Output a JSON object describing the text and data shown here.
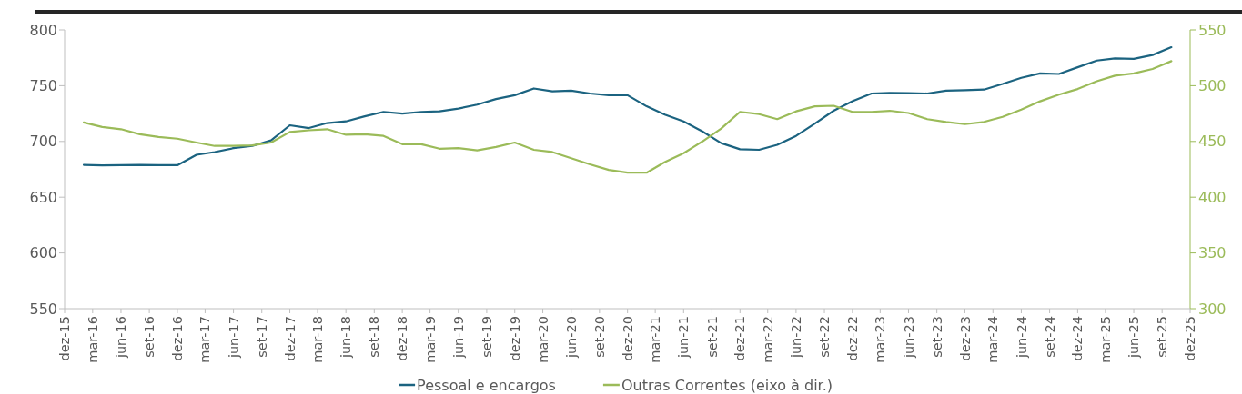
{
  "chart_data": {
    "type": "line",
    "x": [
      "2016-02",
      "2016-04",
      "2016-06",
      "2016-08",
      "2016-10",
      "2016-12",
      "2017-02",
      "2017-04",
      "2017-06",
      "2017-08",
      "2017-10",
      "2017-12",
      "2018-02",
      "2018-04",
      "2018-06",
      "2018-08",
      "2018-10",
      "2018-12",
      "2019-02",
      "2019-04",
      "2019-06",
      "2019-08",
      "2019-10",
      "2019-12",
      "2020-02",
      "2020-04",
      "2020-06",
      "2020-08",
      "2020-10",
      "2020-12",
      "2021-02",
      "2021-04",
      "2021-06",
      "2021-08",
      "2021-10",
      "2021-12",
      "2022-02",
      "2022-04",
      "2022-06",
      "2022-08",
      "2022-10",
      "2022-12",
      "2023-02",
      "2023-04",
      "2023-06",
      "2023-08",
      "2023-10",
      "2023-12",
      "2024-02",
      "2024-04",
      "2024-06",
      "2024-08",
      "2024-10",
      "2024-12",
      "2025-02",
      "2025-04",
      "2025-06",
      "2025-08",
      "2025-10"
    ],
    "series": [
      {
        "name": "Pessoal e encargos",
        "color": "#1b6380",
        "values": [
          679,
          678.5,
          678.8,
          679,
          678.7,
          678.7,
          688,
          690.5,
          694,
          696,
          701,
          714.5,
          712,
          716.5,
          718,
          722.5,
          726.5,
          725,
          726.5,
          727,
          729.5,
          733,
          738,
          741.5,
          747.5,
          745,
          745.5,
          743,
          741.5,
          741.5,
          731.5,
          724,
          718,
          709,
          698.5,
          693,
          692.5,
          697,
          705,
          716,
          727.5,
          736,
          743,
          743.5,
          743.3,
          743,
          745.5,
          746,
          746.5,
          751.5,
          757,
          761,
          760.5,
          766.5,
          772.5,
          774.5,
          774,
          777.5,
          784.5
        ]
      },
      {
        "name": "Outras Correntes (eixo à dir.)",
        "color": "#9bbb59",
        "axis": "y2",
        "values": [
          467,
          463,
          461,
          456.5,
          454,
          452.5,
          449,
          446,
          446,
          446.5,
          449,
          458.5,
          460,
          461,
          456,
          456.5,
          455,
          447.5,
          447.5,
          443.5,
          444,
          442,
          445,
          449,
          442.5,
          440.5,
          435,
          429.5,
          424.5,
          422,
          422,
          431.5,
          439.5,
          450,
          461.5,
          476.5,
          474.5,
          470,
          477,
          481.5,
          482,
          476.5,
          476.5,
          477.5,
          475.5,
          470,
          467.5,
          465.5,
          467.5,
          472,
          478.5,
          486,
          492,
          497,
          504,
          509,
          511,
          515,
          522
        ]
      }
    ],
    "xlim": [
      "2015-12",
      "2025-12"
    ],
    "xticks": [
      {
        "value": "2015-12",
        "label": "dez-15"
      },
      {
        "value": "2016-03",
        "label": "mar-16"
      },
      {
        "value": "2016-06",
        "label": "jun-16"
      },
      {
        "value": "2016-09",
        "label": "set-16"
      },
      {
        "value": "2016-12",
        "label": "dez-16"
      },
      {
        "value": "2017-03",
        "label": "mar-17"
      },
      {
        "value": "2017-06",
        "label": "jun-17"
      },
      {
        "value": "2017-09",
        "label": "set-17"
      },
      {
        "value": "2017-12",
        "label": "dez-17"
      },
      {
        "value": "2018-03",
        "label": "mar-18"
      },
      {
        "value": "2018-06",
        "label": "jun-18"
      },
      {
        "value": "2018-09",
        "label": "set-18"
      },
      {
        "value": "2018-12",
        "label": "dez-18"
      },
      {
        "value": "2019-03",
        "label": "mar-19"
      },
      {
        "value": "2019-06",
        "label": "jun-19"
      },
      {
        "value": "2019-09",
        "label": "set-19"
      },
      {
        "value": "2019-12",
        "label": "dez-19"
      },
      {
        "value": "2020-03",
        "label": "mar-20"
      },
      {
        "value": "2020-06",
        "label": "jun-20"
      },
      {
        "value": "2020-09",
        "label": "set-20"
      },
      {
        "value": "2020-12",
        "label": "dez-20"
      },
      {
        "value": "2021-03",
        "label": "mar-21"
      },
      {
        "value": "2021-06",
        "label": "jun-21"
      },
      {
        "value": "2021-09",
        "label": "set-21"
      },
      {
        "value": "2021-12",
        "label": "dez-21"
      },
      {
        "value": "2022-03",
        "label": "mar-22"
      },
      {
        "value": "2022-06",
        "label": "jun-22"
      },
      {
        "value": "2022-09",
        "label": "set-22"
      },
      {
        "value": "2022-12",
        "label": "dez-22"
      },
      {
        "value": "2023-03",
        "label": "mar-23"
      },
      {
        "value": "2023-06",
        "label": "jun-23"
      },
      {
        "value": "2023-09",
        "label": "set-23"
      },
      {
        "value": "2023-12",
        "label": "dez-23"
      },
      {
        "value": "2024-03",
        "label": "mar-24"
      },
      {
        "value": "2024-06",
        "label": "jun-24"
      },
      {
        "value": "2024-09",
        "label": "set-24"
      },
      {
        "value": "2024-12",
        "label": "dez-24"
      },
      {
        "value": "2025-03",
        "label": "mar-25"
      },
      {
        "value": "2025-06",
        "label": "jun-25"
      },
      {
        "value": "2025-09",
        "label": "set-25"
      },
      {
        "value": "2025-12",
        "label": "dez-25"
      }
    ],
    "ylim": [
      550,
      800
    ],
    "yticks": [
      550,
      600,
      650,
      700,
      750,
      800
    ],
    "y2lim": [
      300,
      550
    ],
    "y2ticks": [
      300,
      350,
      400,
      450,
      500,
      550
    ],
    "legend": "bottom"
  }
}
